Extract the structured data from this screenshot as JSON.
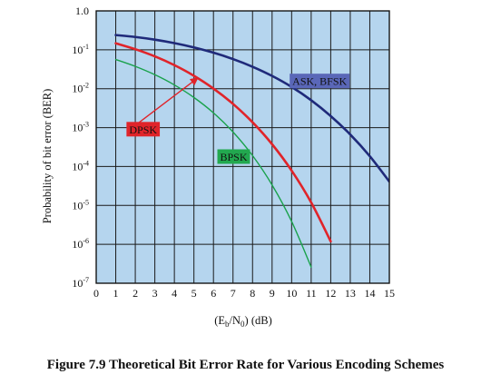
{
  "figure": {
    "caption": "Figure 7.9  Theoretical Bit Error Rate for Various Encoding Schemes"
  },
  "chart_data": {
    "type": "line",
    "title": "",
    "xlabel": "(Eb/N0) (dB)",
    "xlabel_parts": {
      "prefix": "(E",
      "sub1": "b",
      "mid": "/N",
      "sub2": "0",
      "suffix": ") (dB)"
    },
    "ylabel": "Probability of bit error (BER)",
    "xlim": [
      0,
      15
    ],
    "ylim": [
      1e-07,
      1.0
    ],
    "y_scale": "log",
    "grid": true,
    "background_color": "#b5d5ee",
    "x_ticks": [
      "0",
      "1",
      "2",
      "3",
      "4",
      "5",
      "6",
      "7",
      "8",
      "9",
      "10",
      "11",
      "12",
      "13",
      "14",
      "15"
    ],
    "y_ticks": [
      {
        "value": 1.0,
        "base": "1.0",
        "exp": ""
      },
      {
        "value": 0.1,
        "base": "10",
        "exp": "-1"
      },
      {
        "value": 0.01,
        "base": "10",
        "exp": "-2"
      },
      {
        "value": 0.001,
        "base": "10",
        "exp": "-3"
      },
      {
        "value": 0.0001,
        "base": "10",
        "exp": "-4"
      },
      {
        "value": 1e-05,
        "base": "10",
        "exp": "-5"
      },
      {
        "value": 1e-06,
        "base": "10",
        "exp": "-6"
      },
      {
        "value": 1e-07,
        "base": "10",
        "exp": "-7"
      }
    ],
    "series": [
      {
        "name": "ASK, BFSK",
        "color": "#1f2a7a",
        "label_bg": "#5a67b8",
        "stroke_width": 2.6,
        "x": [
          1,
          2,
          3,
          4,
          5,
          6,
          7,
          8,
          9,
          10,
          11,
          12,
          13,
          14,
          15
        ],
        "y": [
          0.2394,
          0.2132,
          0.1821,
          0.1485,
          0.1151,
          0.0843,
          0.0578,
          0.0367,
          0.0213,
          0.0111,
          0.00505,
          0.00198,
          0.000664,
          0.000184,
          4.09e-05
        ]
      },
      {
        "name": "DPSK",
        "color": "#e0242a",
        "label_bg": "#e0242a",
        "stroke_width": 2.6,
        "x": [
          1,
          2,
          3,
          4,
          5,
          6,
          7,
          8,
          9,
          10,
          11,
          12
        ],
        "y": [
          0.1471,
          0.1037,
          0.0678,
          0.0403,
          0.0215,
          0.0101,
          0.00407,
          0.00137,
          0.000374,
          7.85e-05,
          1.19e-05,
          1.19e-06
        ]
      },
      {
        "name": "BPSK",
        "color": "#1aa24c",
        "label_bg": "#22a84f",
        "stroke_width": 1.4,
        "x": [
          1,
          2,
          3,
          4,
          5,
          6,
          7,
          8,
          9,
          10,
          11
        ],
        "y": [
          0.0563,
          0.0375,
          0.0229,
          0.0125,
          0.00595,
          0.00239,
          0.000773,
          0.000191,
          3.36e-05,
          3.87e-06,
          2.6e-07
        ]
      }
    ],
    "annotations": [
      {
        "series": "ASK, BFSK",
        "x": 9.9,
        "y": 0.0158
      },
      {
        "series": "DPSK",
        "x": 1.55,
        "y": 0.00091,
        "arrow_to": {
          "x": 5.3,
          "y": 0.0215
        }
      },
      {
        "series": "BPSK",
        "x": 6.2,
        "y": 0.00018
      }
    ]
  }
}
